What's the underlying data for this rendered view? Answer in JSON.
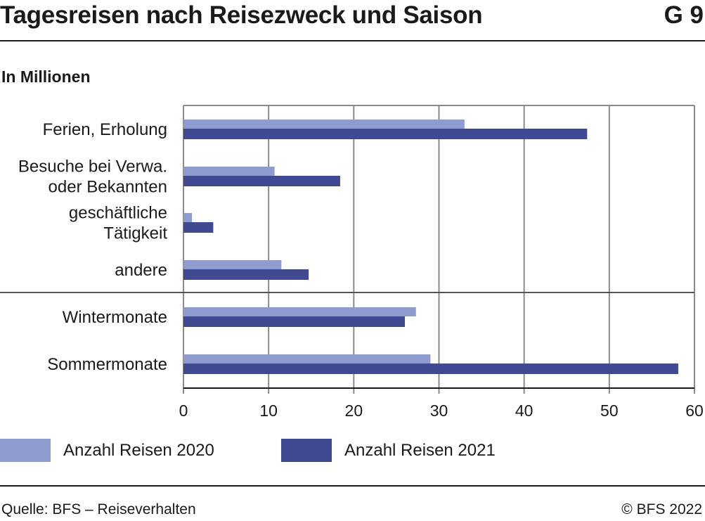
{
  "header": {
    "title": "Tagesreisen nach Reisezweck und Saison",
    "chart_id": "G 9"
  },
  "subtitle": "In Millionen",
  "chart_data": {
    "type": "bar",
    "orientation": "horizontal",
    "categories": [
      [
        "Ferien, Erholung"
      ],
      [
        "Besuche bei Verwa.",
        "oder Bekannten"
      ],
      [
        "geschäftliche",
        "Tätigkeit"
      ],
      [
        "andere"
      ],
      [
        "Wintermonate"
      ],
      [
        "Sommermonate"
      ]
    ],
    "series": [
      {
        "name": "Anzahl Reisen 2020",
        "color": "#8d9bcf",
        "values": [
          33.0,
          10.7,
          1.0,
          11.5,
          27.3,
          29.0
        ]
      },
      {
        "name": "Anzahl Reisen 2021",
        "color": "#3f4a93",
        "values": [
          47.4,
          18.4,
          3.5,
          14.7,
          26.0,
          58.1
        ]
      }
    ],
    "xlim": [
      0,
      60
    ],
    "xticks": [
      0,
      10,
      20,
      30,
      40,
      50,
      60
    ],
    "grid": true,
    "group_separator_after_index": 3,
    "legend_position": "bottom"
  },
  "footer": {
    "source": "Quelle: BFS – Reiseverhalten",
    "copyright": "© BFS 2022"
  }
}
